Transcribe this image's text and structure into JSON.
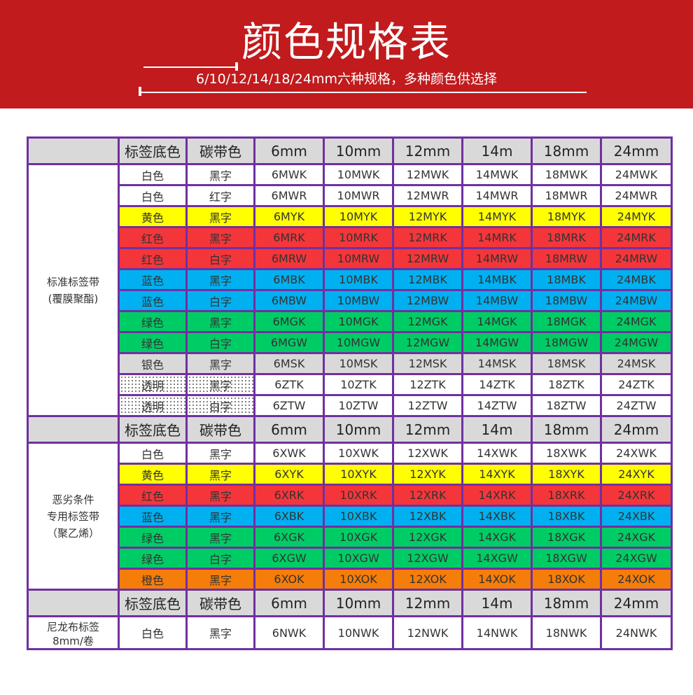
{
  "banner": {
    "title": "颜色规格表",
    "subtitle": "6/10/12/14/18/24mm六种规格，多种颜色供选择",
    "background_color": "#c11b1d"
  },
  "table": {
    "border_color": "#7030a0",
    "header": [
      "",
      "标签底色",
      "碳带色",
      "6mm",
      "10mm",
      "12mm",
      "14m",
      "18mm",
      "24mm"
    ],
    "colors": {
      "white": "#ffffff",
      "yellow": "#ffff00",
      "red": "#f4363a",
      "blue": "#00b0f0",
      "green": "#00cc66",
      "silver": "#d9d9d9",
      "orange": "#f57d0a",
      "header_gray": "#d9d9d9"
    },
    "sections": [
      {
        "group_label_line1": "标准标签带",
        "group_label_line2": "(覆膜聚酯)",
        "rows": [
          {
            "base": "白色",
            "ribbon": "黑字",
            "bg": "white",
            "codes": [
              "6MWK",
              "10MWK",
              "12MWK",
              "14MWK",
              "18MWK",
              "24MWK"
            ]
          },
          {
            "base": "白色",
            "ribbon": "红字",
            "bg": "white",
            "codes": [
              "6MWR",
              "10MWR",
              "12MWR",
              "14MWR",
              "18MWR",
              "24MWR"
            ]
          },
          {
            "base": "黄色",
            "ribbon": "黑字",
            "bg": "yellow",
            "codes": [
              "6MYK",
              "10MYK",
              "12MYK",
              "14MYK",
              "18MYK",
              "24MYK"
            ]
          },
          {
            "base": "红色",
            "ribbon": "黑字",
            "bg": "red",
            "codes": [
              "6MRK",
              "10MRK",
              "12MRK",
              "14MRK",
              "18MRK",
              "24MRK"
            ]
          },
          {
            "base": "红色",
            "ribbon": "白字",
            "bg": "red",
            "codes": [
              "6MRW",
              "10MRW",
              "12MRW",
              "14MRW",
              "18MRW",
              "24MRW"
            ]
          },
          {
            "base": "蓝色",
            "ribbon": "黑字",
            "bg": "blue",
            "codes": [
              "6MBK",
              "10MBK",
              "12MBK",
              "14MBK",
              "18MBK",
              "24MBK"
            ]
          },
          {
            "base": "蓝色",
            "ribbon": "白字",
            "bg": "blue",
            "codes": [
              "6MBW",
              "10MBW",
              "12MBW",
              "14MBW",
              "18MBW",
              "24MBW"
            ]
          },
          {
            "base": "绿色",
            "ribbon": "黑字",
            "bg": "green",
            "codes": [
              "6MGK",
              "10MGK",
              "12MGK",
              "14MGK",
              "18MGK",
              "24MGK"
            ]
          },
          {
            "base": "绿色",
            "ribbon": "白字",
            "bg": "green",
            "codes": [
              "6MGW",
              "10MGW",
              "12MGW",
              "14MGW",
              "18MGW",
              "24MGW"
            ]
          },
          {
            "base": "银色",
            "ribbon": "黑字",
            "bg": "silver",
            "codes": [
              "6MSK",
              "10MSK",
              "12MSK",
              "14MSK",
              "18MSK",
              "24MSK"
            ]
          },
          {
            "base": "透明",
            "ribbon": "黑字",
            "bg": "clear",
            "codes": [
              "6ZTK",
              "10ZTK",
              "12ZTK",
              "14ZTK",
              "18ZTK",
              "24ZTK"
            ]
          },
          {
            "base": "透明",
            "ribbon": "白字",
            "bg": "clear",
            "codes": [
              "6ZTW",
              "10ZTW",
              "12ZTW",
              "14ZTW",
              "18ZTW",
              "24ZTW"
            ]
          }
        ]
      },
      {
        "group_label_line1": "恶劣条件",
        "group_label_line2": "专用标签带",
        "group_label_line3": "（聚乙烯）",
        "rows": [
          {
            "base": "白色",
            "ribbon": "黑字",
            "bg": "white",
            "codes": [
              "6XWK",
              "10XWK",
              "12XWK",
              "14XWK",
              "18XWK",
              "24XWK"
            ]
          },
          {
            "base": "黄色",
            "ribbon": "黑字",
            "bg": "yellow",
            "codes": [
              "6XYK",
              "10XYK",
              "12XYK",
              "14XYK",
              "18XYK",
              "24XYK"
            ]
          },
          {
            "base": "红色",
            "ribbon": "黑字",
            "bg": "red",
            "codes": [
              "6XRK",
              "10XRK",
              "12XRK",
              "14XRK",
              "18XRK",
              "24XRK"
            ]
          },
          {
            "base": "蓝色",
            "ribbon": "黑字",
            "bg": "blue",
            "codes": [
              "6XBK",
              "10XBK",
              "12XBK",
              "14XBK",
              "18XBK",
              "24XBK"
            ]
          },
          {
            "base": "绿色",
            "ribbon": "黑字",
            "bg": "green",
            "codes": [
              "6XGK",
              "10XGK",
              "12XGK",
              "14XGK",
              "18XGK",
              "24XGK"
            ]
          },
          {
            "base": "绿色",
            "ribbon": "白字",
            "bg": "green",
            "codes": [
              "6XGW",
              "10XGW",
              "12XGW",
              "14XGW",
              "18XGW",
              "24XGW"
            ]
          },
          {
            "base": "橙色",
            "ribbon": "黑字",
            "bg": "orange",
            "codes": [
              "6XOK",
              "10XOK",
              "12XOK",
              "14XOK",
              "18XOK",
              "24XOK"
            ]
          }
        ]
      },
      {
        "group_label_line1": "尼龙布标签",
        "group_label_line2": "8mm/卷",
        "rows": [
          {
            "base": "白色",
            "ribbon": "黑字",
            "bg": "white",
            "codes": [
              "6NWK",
              "10NWK",
              "12NWK",
              "14NWK",
              "18NWK",
              "24NWK"
            ]
          }
        ]
      }
    ]
  }
}
